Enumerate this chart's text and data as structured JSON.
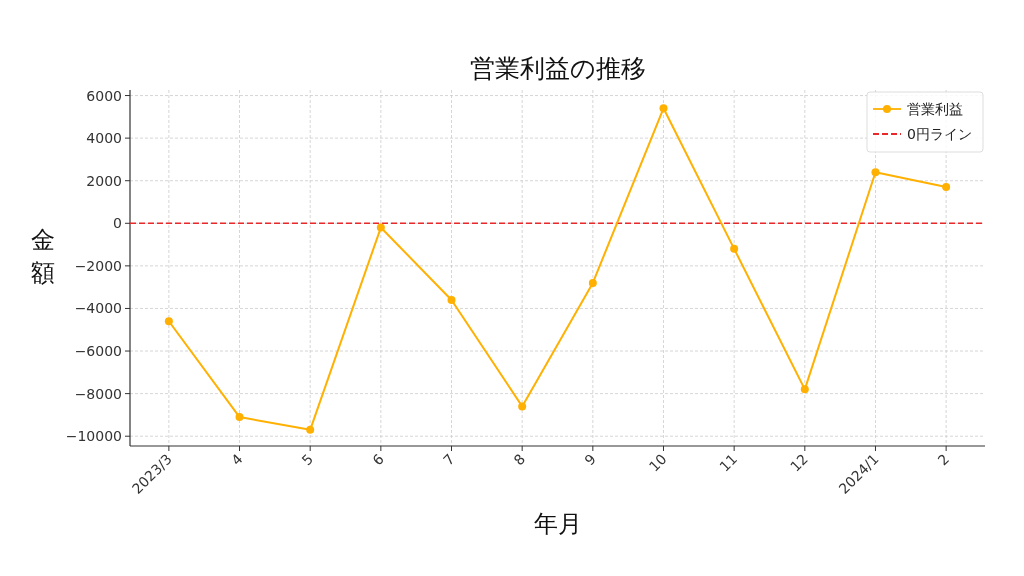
{
  "chart_data": {
    "type": "line",
    "title": "営業利益の推移",
    "xlabel": "年月",
    "ylabel": "金額",
    "categories": [
      "2023/3",
      "4",
      "5",
      "6",
      "7",
      "8",
      "9",
      "10",
      "11",
      "12",
      "2024/1",
      "2"
    ],
    "series": [
      {
        "name": "営業利益",
        "color": "#ffb000",
        "values": [
          -4600,
          -9100,
          -9700,
          -200,
          -3600,
          -8600,
          -2800,
          5400,
          -1200,
          -7800,
          2400,
          1700
        ]
      }
    ],
    "ref_lines": [
      {
        "axis": "y",
        "value": 0,
        "label": "0円ライン",
        "color": "#e8282b",
        "line_style": "dashed"
      }
    ],
    "ylim": [
      -10460,
      6260
    ],
    "yticks": [
      {
        "value": -10000,
        "label": "−10000"
      },
      {
        "value": -8000,
        "label": "−8000"
      },
      {
        "value": -6000,
        "label": "−6000"
      },
      {
        "value": -4000,
        "label": "−4000"
      },
      {
        "value": -2000,
        "label": "−2000"
      },
      0,
      2000,
      4000,
      6000
    ],
    "grid": true,
    "legend": "top right",
    "marker": "circle",
    "line_style": "solid"
  }
}
